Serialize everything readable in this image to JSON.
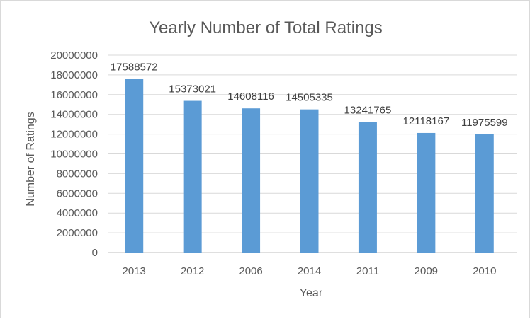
{
  "chart_data": {
    "type": "bar",
    "title": "Yearly Number of Total Ratings",
    "xlabel": "Year",
    "ylabel": "Number of Ratings",
    "categories": [
      "2013",
      "2012",
      "2006",
      "2014",
      "2011",
      "2009",
      "2010"
    ],
    "values": [
      17588572,
      15373021,
      14608116,
      14505335,
      13241765,
      12118167,
      11975599
    ],
    "data_labels": [
      "17588572",
      "15373021",
      "14608116",
      "14505335",
      "13241765",
      "12118167",
      "11975599"
    ],
    "ylim": [
      0,
      20000000
    ],
    "yticks": [
      "0",
      "2000000",
      "4000000",
      "6000000",
      "8000000",
      "10000000",
      "12000000",
      "14000000",
      "16000000",
      "18000000",
      "20000000"
    ],
    "grid": true,
    "legend": "none",
    "bar_color": "#5b9bd5"
  }
}
